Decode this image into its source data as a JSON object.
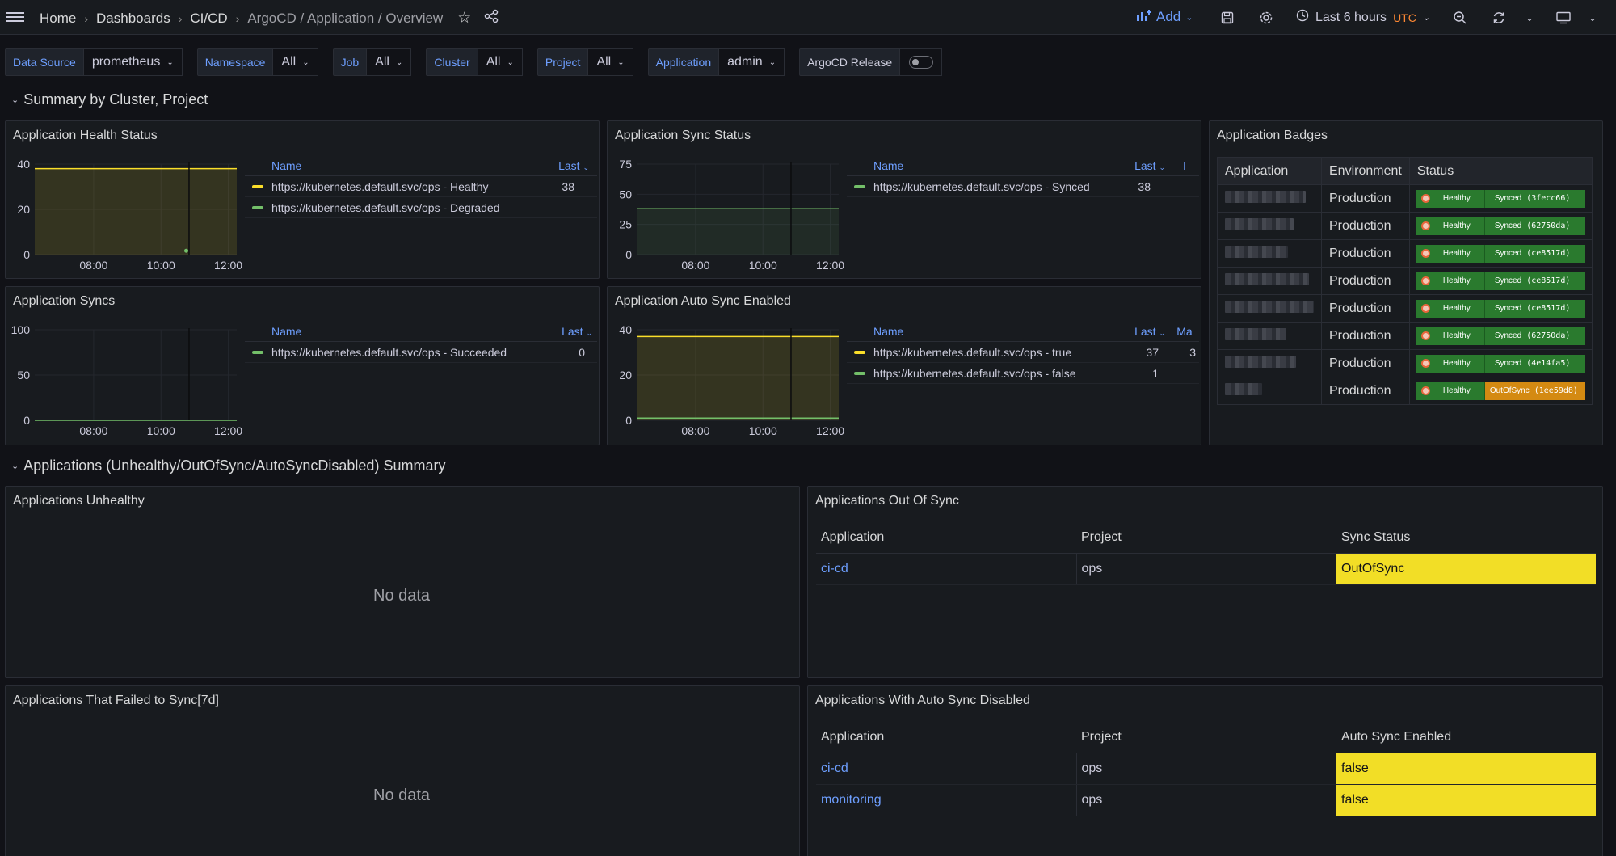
{
  "topbar": {
    "breadcrumbs": [
      "Home",
      "Dashboards",
      "CI/CD",
      "ArgoCD / Application / Overview"
    ],
    "add_label": "Add",
    "time_range": "Last 6 hours",
    "timezone": "UTC"
  },
  "variables": [
    {
      "label": "Data Source",
      "value": "prometheus"
    },
    {
      "label": "Namespace",
      "value": "All"
    },
    {
      "label": "Job",
      "value": "All"
    },
    {
      "label": "Cluster",
      "value": "All"
    },
    {
      "label": "Project",
      "value": "All"
    },
    {
      "label": "Application",
      "value": "admin"
    }
  ],
  "release_toggle": {
    "label": "ArgoCD Release",
    "on": false
  },
  "rows": {
    "summary": "Summary by Cluster, Project",
    "apps": "Applications (Unhealthy/OutOfSync/AutoSyncDisabled) Summary"
  },
  "panels": {
    "health": {
      "title": "Application Health Status",
      "legend_name": "Name",
      "legend_last": "Last",
      "series": [
        {
          "name": "https://kubernetes.default.svc/ops - Healthy",
          "last": "38",
          "color": "#fade2a"
        },
        {
          "name": "https://kubernetes.default.svc/ops - Degraded",
          "last": "",
          "color": "#73bf69"
        }
      ]
    },
    "sync_status": {
      "title": "Application Sync Status",
      "legend_name": "Name",
      "legend_last": "Last",
      "legend_extra": "I",
      "series": [
        {
          "name": "https://kubernetes.default.svc/ops - Synced",
          "last": "38",
          "color": "#73bf69"
        }
      ]
    },
    "syncs": {
      "title": "Application Syncs",
      "legend_name": "Name",
      "legend_last": "Last",
      "series": [
        {
          "name": "https://kubernetes.default.svc/ops - Succeeded",
          "last": "0",
          "color": "#73bf69"
        }
      ]
    },
    "auto_sync": {
      "title": "Application Auto Sync Enabled",
      "legend_name": "Name",
      "legend_last": "Last",
      "legend_extra": "Ma",
      "series": [
        {
          "name": "https://kubernetes.default.svc/ops - true",
          "last": "37",
          "extra": "3",
          "color": "#fade2a"
        },
        {
          "name": "https://kubernetes.default.svc/ops - false",
          "last": "1",
          "extra": "",
          "color": "#73bf69"
        }
      ]
    },
    "badges": {
      "title": "Application Badges",
      "headers": [
        "Application",
        "Environment",
        "Status"
      ],
      "rows": [
        {
          "env": "Production",
          "health": "Healthy",
          "sync": "Synced",
          "rev": "(3fecc66)",
          "oos": false
        },
        {
          "env": "Production",
          "health": "Healthy",
          "sync": "Synced",
          "rev": "(62750da)",
          "oos": false
        },
        {
          "env": "Production",
          "health": "Healthy",
          "sync": "Synced",
          "rev": "(ce8517d)",
          "oos": false
        },
        {
          "env": "Production",
          "health": "Healthy",
          "sync": "Synced",
          "rev": "(ce8517d)",
          "oos": false
        },
        {
          "env": "Production",
          "health": "Healthy",
          "sync": "Synced",
          "rev": "(ce8517d)",
          "oos": false
        },
        {
          "env": "Production",
          "health": "Healthy",
          "sync": "Synced",
          "rev": "(62750da)",
          "oos": false
        },
        {
          "env": "Production",
          "health": "Healthy",
          "sync": "Synced",
          "rev": "(4e14fa5)",
          "oos": false
        },
        {
          "env": "Production",
          "health": "Healthy",
          "sync": "OutOfSync",
          "rev": "(1ee59d8)",
          "oos": true
        }
      ]
    },
    "unhealthy": {
      "title": "Applications Unhealthy",
      "no_data": "No data"
    },
    "out_of_sync": {
      "title": "Applications Out Of Sync",
      "headers": [
        "Application",
        "Project",
        "Sync Status"
      ],
      "rows": [
        {
          "app": "ci-cd",
          "project": "ops",
          "status": "OutOfSync"
        }
      ]
    },
    "failed": {
      "title": "Applications That Failed to Sync[7d]",
      "no_data": "No data"
    },
    "auto_disabled": {
      "title": "Applications With Auto Sync Disabled",
      "headers": [
        "Application",
        "Project",
        "Auto Sync Enabled"
      ],
      "rows": [
        {
          "app": "ci-cd",
          "project": "ops",
          "status": "false"
        },
        {
          "app": "monitoring",
          "project": "ops",
          "status": "false"
        }
      ]
    }
  },
  "chart_data": [
    {
      "type": "line",
      "title": "Application Health Status",
      "x_ticks": [
        "08:00",
        "10:00",
        "12:00"
      ],
      "ylim": [
        0,
        40
      ],
      "y_ticks": [
        0,
        20,
        40
      ],
      "series": [
        {
          "name": "https://kubernetes.default.svc/ops - Healthy",
          "values": [
            38,
            38
          ]
        },
        {
          "name": "https://kubernetes.default.svc/ops - Degraded",
          "points": [
            {
              "x": "10:45",
              "y": 1
            }
          ]
        }
      ]
    },
    {
      "type": "line",
      "title": "Application Sync Status",
      "x_ticks": [
        "08:00",
        "10:00",
        "12:00"
      ],
      "ylim": [
        0,
        75
      ],
      "y_ticks": [
        0,
        25,
        50,
        75
      ],
      "series": [
        {
          "name": "https://kubernetes.default.svc/ops - Synced",
          "values": [
            38,
            38
          ]
        }
      ]
    },
    {
      "type": "line",
      "title": "Application Syncs",
      "x_ticks": [
        "08:00",
        "10:00",
        "12:00"
      ],
      "ylim": [
        0,
        100
      ],
      "y_ticks": [
        0,
        50,
        100
      ],
      "series": [
        {
          "name": "https://kubernetes.default.svc/ops - Succeeded",
          "values": [
            0,
            0
          ]
        }
      ]
    },
    {
      "type": "line",
      "title": "Application Auto Sync Enabled",
      "x_ticks": [
        "08:00",
        "10:00",
        "12:00"
      ],
      "ylim": [
        0,
        40
      ],
      "y_ticks": [
        0,
        20,
        40
      ],
      "series": [
        {
          "name": "https://kubernetes.default.svc/ops - true",
          "values": [
            37,
            37
          ]
        },
        {
          "name": "https://kubernetes.default.svc/ops - false",
          "values": [
            1,
            1
          ]
        }
      ]
    }
  ]
}
